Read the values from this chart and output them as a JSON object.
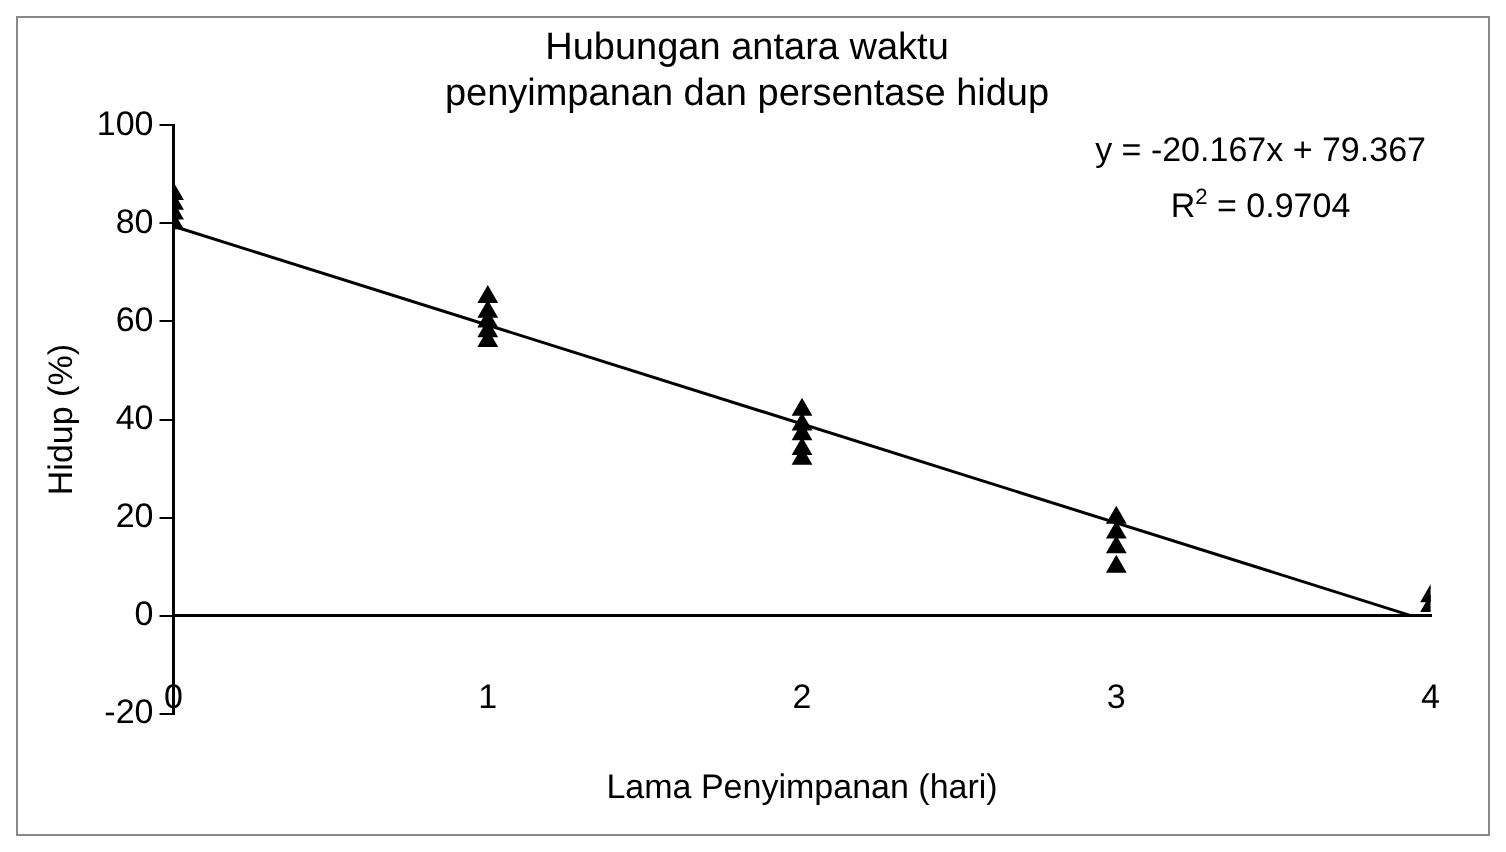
{
  "chart_data": {
    "type": "scatter",
    "title": "Hubungan antara waktu penyimpanan dan persentase hidup",
    "xlabel": "Lama Penyimpanan (hari)",
    "ylabel": "Hidup (%)",
    "series": [
      {
        "color": "#000000",
        "marker": "triangle",
        "x": [
          0,
          0,
          0,
          0,
          1,
          1,
          1,
          1,
          1,
          2,
          2,
          2,
          2,
          2,
          3,
          3,
          3,
          3,
          4,
          4
        ],
        "values": [
          80,
          82,
          84,
          86,
          56,
          58,
          60,
          62,
          65,
          32,
          34,
          37,
          39,
          42,
          10,
          14,
          17,
          20,
          2,
          4
        ]
      },
      {
        "type": "line",
        "color": "#000000",
        "marker": "none",
        "line_style": "solid",
        "x": [
          0,
          3.94
        ],
        "values": [
          79.4,
          0
        ]
      }
    ],
    "xlim": [
      0,
      4
    ],
    "xticks": [
      0,
      1,
      2,
      3,
      4
    ],
    "ylim": [
      -20,
      100
    ],
    "yticks": [
      -20,
      0,
      20,
      40,
      60,
      80,
      100
    ],
    "grid": false,
    "legend": false,
    "annotations": [
      "y = -20.167x + 79.367",
      "R$^{2}$ = 0.9704"
    ]
  }
}
